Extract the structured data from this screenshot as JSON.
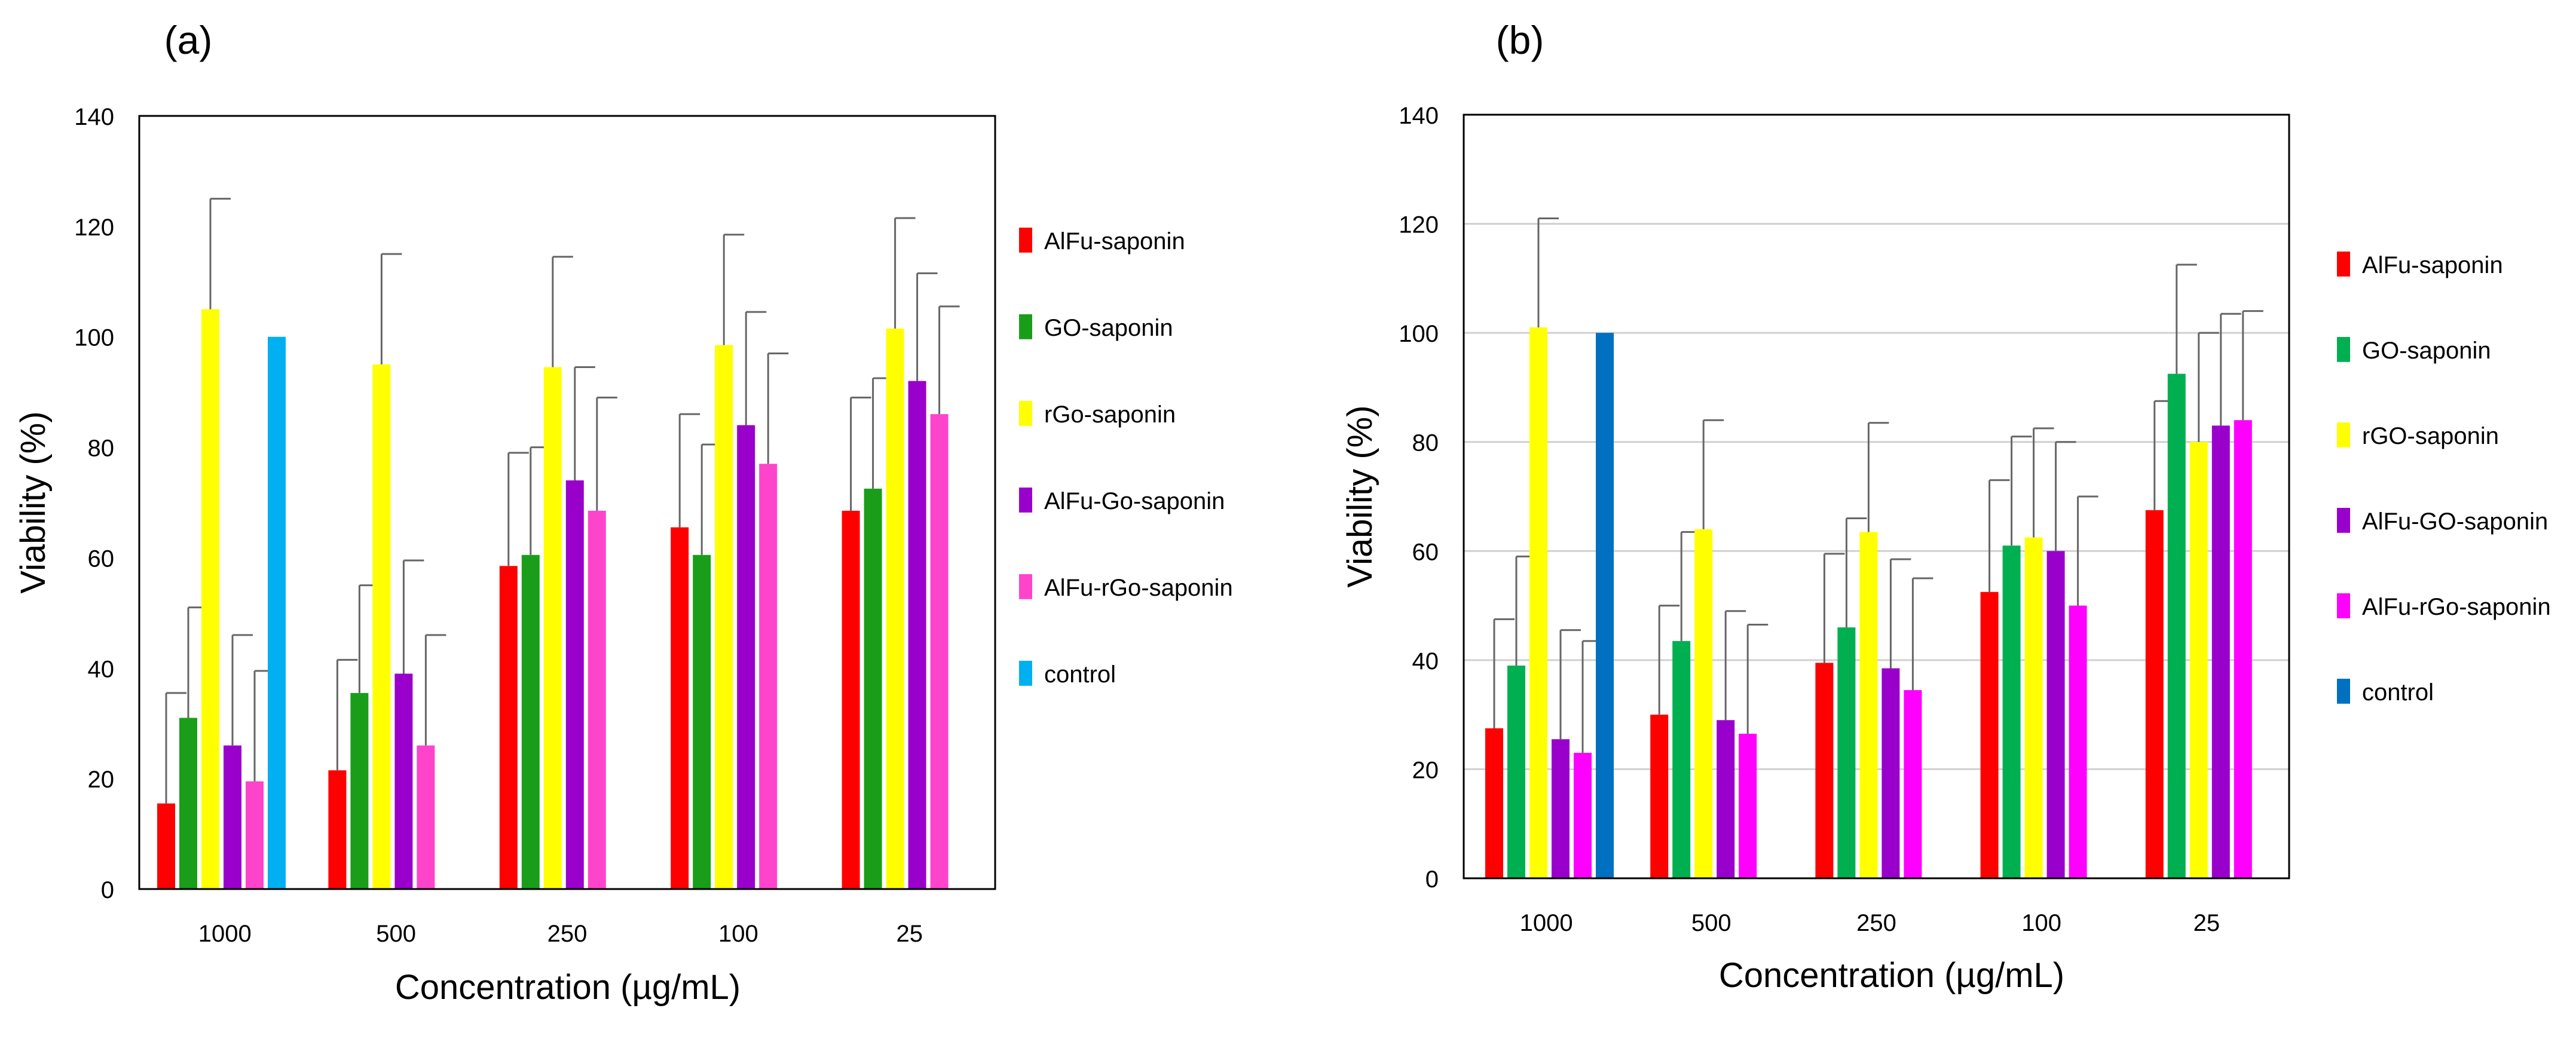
{
  "figure": {
    "panel_labels": [
      "(a)",
      "(b)"
    ]
  },
  "chart_data": [
    {
      "type": "bar",
      "panel": "(a)",
      "title": "",
      "xlabel": "Concentration (µg/mL)",
      "ylabel": "Viability (%)",
      "ylim": [
        0,
        140
      ],
      "yticks": [
        0,
        20,
        40,
        60,
        80,
        100,
        120,
        140
      ],
      "grid": false,
      "legend_position": "right",
      "categories": [
        "1000",
        "500",
        "250",
        "100",
        "25"
      ],
      "series": [
        {
          "name": "AlFu-saponin",
          "color": "#ff0000",
          "values": [
            15.5,
            21.5,
            58.5,
            65.5,
            68.5
          ],
          "errors": [
            20,
            20,
            20.5,
            20.5,
            20.5
          ]
        },
        {
          "name": "GO-saponin",
          "color": "#1a9e1a",
          "values": [
            31,
            35.5,
            60.5,
            60.5,
            72.5
          ],
          "errors": [
            20,
            19.5,
            19.5,
            20,
            20
          ]
        },
        {
          "name": "rGo-saponin",
          "color": "#ffff00",
          "values": [
            105,
            95,
            94.5,
            98.5,
            101.5
          ],
          "errors": [
            20,
            20,
            20,
            20,
            20
          ]
        },
        {
          "name": "AlFu-Go-saponin",
          "color": "#9900cc",
          "values": [
            26,
            39,
            74,
            84,
            92
          ],
          "errors": [
            20,
            20.5,
            20.5,
            20.5,
            19.5
          ]
        },
        {
          "name": "AlFu-rGo-saponin",
          "color": "#ff44cc",
          "values": [
            19.5,
            26,
            68.5,
            77,
            86
          ],
          "errors": [
            20,
            20,
            20.5,
            20,
            19.5
          ]
        },
        {
          "name": "control",
          "color": "#00b0f0",
          "values": [
            100,
            null,
            null,
            null,
            null
          ],
          "errors": [
            0,
            0,
            0,
            0,
            0
          ]
        }
      ]
    },
    {
      "type": "bar",
      "panel": "(b)",
      "title": "",
      "xlabel": "Concentration (µg/mL)",
      "ylabel": "Viability (%)",
      "ylim": [
        0,
        140
      ],
      "yticks": [
        0,
        20,
        40,
        60,
        80,
        100,
        120,
        140
      ],
      "grid": true,
      "legend_position": "right",
      "categories": [
        "1000",
        "500",
        "250",
        "100",
        "25"
      ],
      "series": [
        {
          "name": "AlFu-saponin",
          "color": "#ff0000",
          "values": [
            27.5,
            30,
            39.5,
            52.5,
            67.5
          ],
          "errors": [
            20,
            20,
            20,
            20.5,
            20
          ]
        },
        {
          "name": "GO-saponin",
          "color": "#00b050",
          "values": [
            39,
            43.5,
            46,
            61,
            92.5
          ],
          "errors": [
            20,
            20,
            20,
            20,
            20
          ]
        },
        {
          "name": "rGO-saponin",
          "color": "#ffff00",
          "values": [
            101,
            64,
            63.5,
            62.5,
            80
          ],
          "errors": [
            20,
            20,
            20,
            20,
            20
          ]
        },
        {
          "name": "AlFu-GO-saponin",
          "color": "#9900cc",
          "values": [
            25.5,
            29,
            38.5,
            60,
            83
          ],
          "errors": [
            20,
            20,
            20,
            20,
            20.5
          ]
        },
        {
          "name": "AlFu-rGo-saponin",
          "color": "#ff00ff",
          "values": [
            23,
            26.5,
            34.5,
            50,
            84
          ],
          "errors": [
            20.5,
            20,
            20.5,
            20,
            20
          ]
        },
        {
          "name": "control",
          "color": "#0070c0",
          "values": [
            100,
            null,
            null,
            null,
            null
          ],
          "errors": [
            0,
            0,
            0,
            0,
            0
          ]
        }
      ]
    }
  ]
}
